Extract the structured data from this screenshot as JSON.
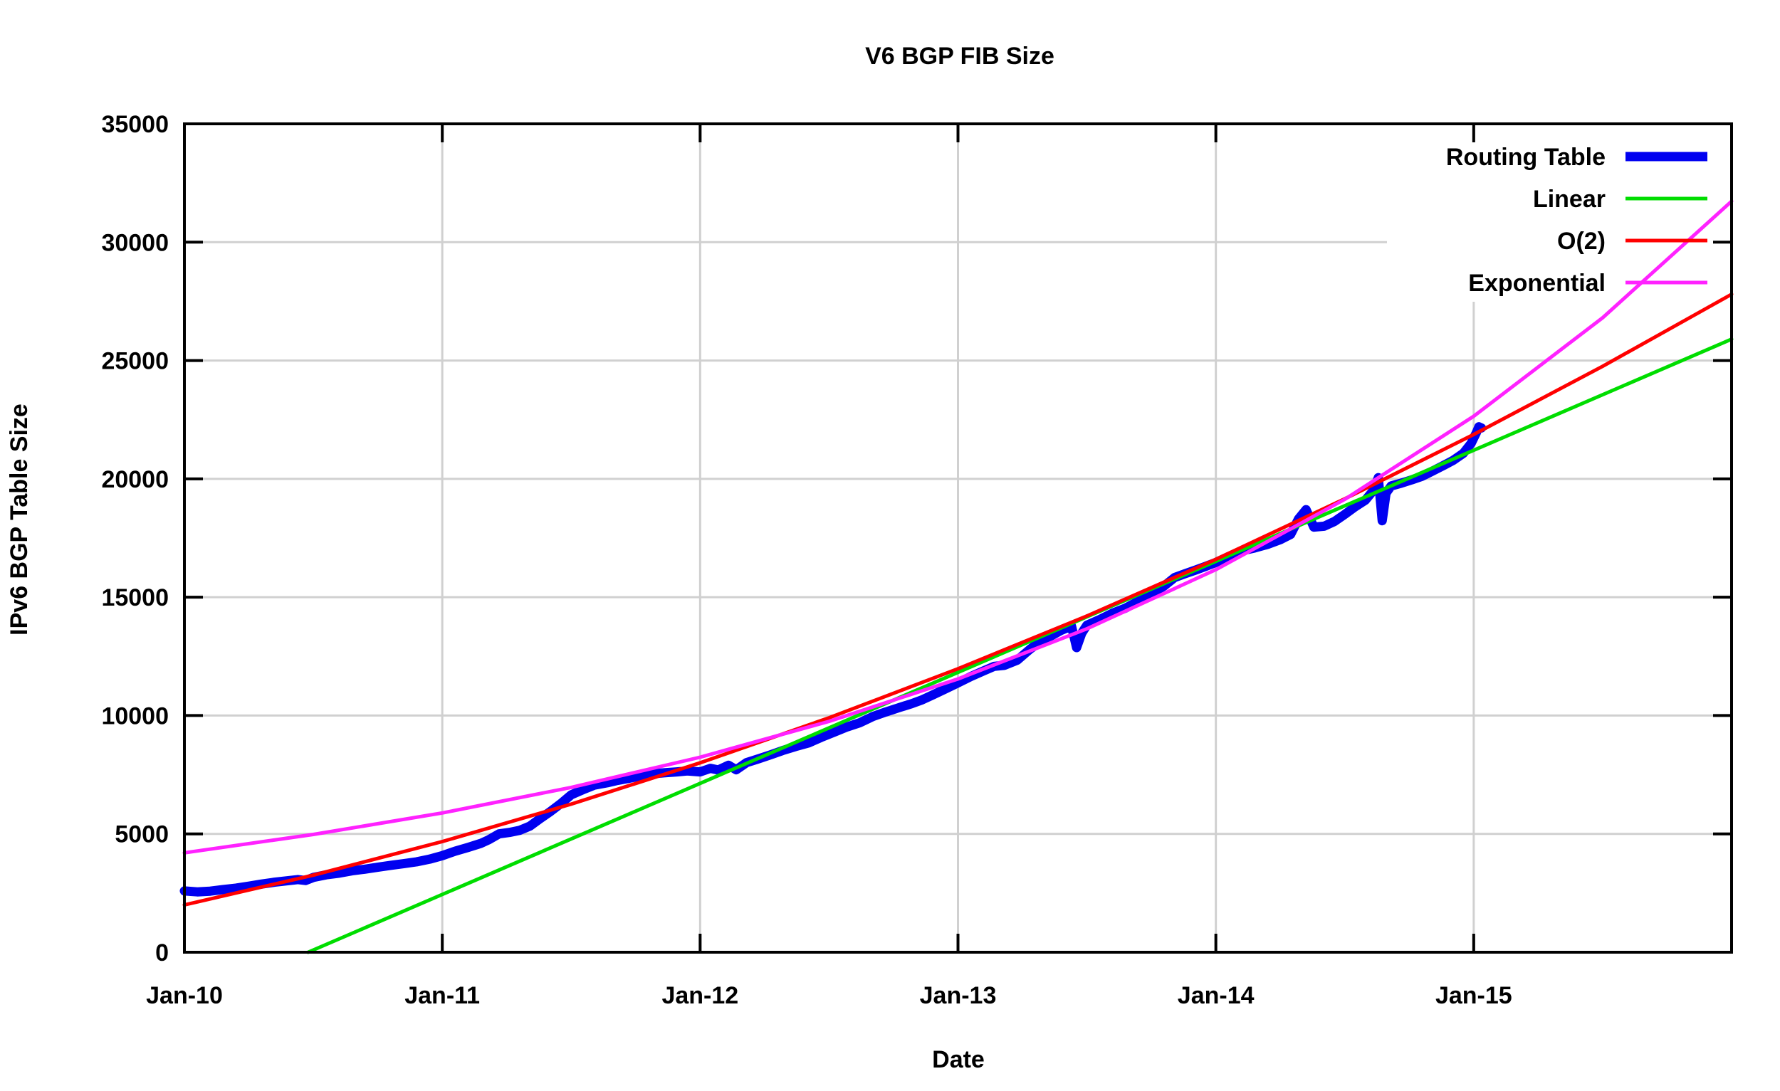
{
  "title": "V6 BGP FIB Size",
  "x_axis": {
    "label": "Date"
  },
  "y_axis": {
    "label": "IPv6 BGP Table Size"
  },
  "colors": {
    "background": "#ffffff",
    "grid": "#d0d0d0",
    "border": "#000000",
    "routing_table": "#0000f0",
    "linear": "#00dd00",
    "o2": "#ff0000",
    "exponential": "#ff22ff"
  },
  "legend": {
    "entries": [
      {
        "label": "Routing Table",
        "color": "#0000f0",
        "line_width": 13
      },
      {
        "label": "Linear",
        "color": "#00dd00",
        "line_width": 5
      },
      {
        "label": "O(2)",
        "color": "#ff0000",
        "line_width": 5
      },
      {
        "label": "Exponential",
        "color": "#ff22ff",
        "line_width": 5
      }
    ]
  },
  "chart_data": {
    "type": "line",
    "title": "V6 BGP FIB Size",
    "xlabel": "Date",
    "ylabel": "IPv6 BGP Table Size",
    "grid": true,
    "legend_position": "top-right-inside",
    "x_unit": "years since Jan-2010",
    "x_range": [
      0,
      6
    ],
    "y_range": [
      0,
      35000
    ],
    "x_ticks": [
      {
        "t": 0,
        "label": "Jan-10"
      },
      {
        "t": 1,
        "label": "Jan-11"
      },
      {
        "t": 2,
        "label": "Jan-12"
      },
      {
        "t": 3,
        "label": "Jan-13"
      },
      {
        "t": 4,
        "label": "Jan-14"
      },
      {
        "t": 5,
        "label": "Jan-15"
      }
    ],
    "y_ticks": [
      0,
      5000,
      10000,
      15000,
      20000,
      25000,
      30000,
      35000
    ],
    "series": [
      {
        "name": "Routing Table",
        "color": "#0000f0",
        "width": 13,
        "points": [
          [
            0,
            2590
          ],
          [
            0.05,
            2550
          ],
          [
            0.1,
            2580
          ],
          [
            0.15,
            2650
          ],
          [
            0.2,
            2710
          ],
          [
            0.25,
            2790
          ],
          [
            0.3,
            2880
          ],
          [
            0.35,
            2960
          ],
          [
            0.4,
            3020
          ],
          [
            0.44,
            3070
          ],
          [
            0.47,
            3030
          ],
          [
            0.5,
            3160
          ],
          [
            0.55,
            3270
          ],
          [
            0.6,
            3340
          ],
          [
            0.65,
            3440
          ],
          [
            0.7,
            3510
          ],
          [
            0.75,
            3590
          ],
          [
            0.8,
            3670
          ],
          [
            0.85,
            3740
          ],
          [
            0.9,
            3820
          ],
          [
            0.95,
            3930
          ],
          [
            1,
            4080
          ],
          [
            1.05,
            4270
          ],
          [
            1.1,
            4430
          ],
          [
            1.15,
            4600
          ],
          [
            1.18,
            4750
          ],
          [
            1.22,
            5000
          ],
          [
            1.26,
            5060
          ],
          [
            1.3,
            5150
          ],
          [
            1.34,
            5330
          ],
          [
            1.38,
            5650
          ],
          [
            1.42,
            5950
          ],
          [
            1.46,
            6280
          ],
          [
            1.5,
            6650
          ],
          [
            1.55,
            6890
          ],
          [
            1.59,
            7060
          ],
          [
            1.64,
            7160
          ],
          [
            1.68,
            7260
          ],
          [
            1.73,
            7360
          ],
          [
            1.77,
            7450
          ],
          [
            1.82,
            7540
          ],
          [
            1.86,
            7580
          ],
          [
            1.91,
            7620
          ],
          [
            1.95,
            7660
          ],
          [
            2,
            7620
          ],
          [
            2.04,
            7770
          ],
          [
            2.07,
            7700
          ],
          [
            2.11,
            7900
          ],
          [
            2.14,
            7710
          ],
          [
            2.18,
            8010
          ],
          [
            2.22,
            8150
          ],
          [
            2.27,
            8330
          ],
          [
            2.32,
            8520
          ],
          [
            2.37,
            8690
          ],
          [
            2.42,
            8840
          ],
          [
            2.47,
            9080
          ],
          [
            2.52,
            9300
          ],
          [
            2.57,
            9520
          ],
          [
            2.62,
            9700
          ],
          [
            2.67,
            9960
          ],
          [
            2.72,
            10150
          ],
          [
            2.77,
            10330
          ],
          [
            2.82,
            10500
          ],
          [
            2.86,
            10660
          ],
          [
            2.9,
            10860
          ],
          [
            2.95,
            11120
          ],
          [
            3,
            11380
          ],
          [
            3.05,
            11650
          ],
          [
            3.1,
            11890
          ],
          [
            3.14,
            12080
          ],
          [
            3.18,
            12120
          ],
          [
            3.23,
            12340
          ],
          [
            3.28,
            12810
          ],
          [
            3.32,
            13130
          ],
          [
            3.36,
            13360
          ],
          [
            3.4,
            13600
          ],
          [
            3.44,
            13780
          ],
          [
            3.46,
            12870
          ],
          [
            3.48,
            13480
          ],
          [
            3.5,
            13820
          ],
          [
            3.55,
            14060
          ],
          [
            3.6,
            14330
          ],
          [
            3.65,
            14540
          ],
          [
            3.7,
            14830
          ],
          [
            3.75,
            15140
          ],
          [
            3.8,
            15480
          ],
          [
            3.84,
            15830
          ],
          [
            3.88,
            15990
          ],
          [
            3.92,
            16140
          ],
          [
            3.96,
            16300
          ],
          [
            4,
            16470
          ],
          [
            4.05,
            16720
          ],
          [
            4.1,
            16960
          ],
          [
            4.15,
            17080
          ],
          [
            4.2,
            17230
          ],
          [
            4.25,
            17430
          ],
          [
            4.29,
            17650
          ],
          [
            4.32,
            18300
          ],
          [
            4.35,
            18700
          ],
          [
            4.38,
            17960
          ],
          [
            4.42,
            18000
          ],
          [
            4.46,
            18200
          ],
          [
            4.5,
            18500
          ],
          [
            4.54,
            18820
          ],
          [
            4.58,
            19100
          ],
          [
            4.61,
            19500
          ],
          [
            4.63,
            20050
          ],
          [
            4.645,
            18230
          ],
          [
            4.66,
            19400
          ],
          [
            4.68,
            19700
          ],
          [
            4.72,
            19820
          ],
          [
            4.76,
            19960
          ],
          [
            4.8,
            20110
          ],
          [
            4.84,
            20330
          ],
          [
            4.88,
            20550
          ],
          [
            4.92,
            20780
          ],
          [
            4.96,
            21080
          ],
          [
            4.99,
            21500
          ],
          [
            5.01,
            21950
          ],
          [
            5.02,
            22200
          ],
          [
            5.03,
            22150
          ]
        ]
      },
      {
        "name": "Linear",
        "color": "#00dd00",
        "width": 5,
        "points": [
          [
            0.48,
            0
          ],
          [
            6,
            25900
          ]
        ]
      },
      {
        "name": "O(2)",
        "color": "#ff0000",
        "width": 5,
        "points": [
          [
            0,
            2000
          ],
          [
            0.5,
            3256
          ],
          [
            1,
            4675
          ],
          [
            1.5,
            6256
          ],
          [
            2,
            8000
          ],
          [
            2.5,
            9906
          ],
          [
            3,
            11975
          ],
          [
            3.5,
            14206
          ],
          [
            4,
            16600
          ],
          [
            4.5,
            19156
          ],
          [
            5,
            21875
          ],
          [
            5.5,
            24756
          ],
          [
            6,
            27800
          ]
        ]
      },
      {
        "name": "Exponential",
        "color": "#ff22ff",
        "width": 5,
        "points": [
          [
            0,
            4200
          ],
          [
            0.5,
            4975
          ],
          [
            1,
            5885
          ],
          [
            1.5,
            6965
          ],
          [
            2,
            8240
          ],
          [
            2.5,
            9755
          ],
          [
            3,
            11545
          ],
          [
            3.5,
            13665
          ],
          [
            4,
            16165
          ],
          [
            4.5,
            19135
          ],
          [
            5,
            22645
          ],
          [
            5.5,
            26805
          ],
          [
            6,
            31730
          ]
        ]
      }
    ]
  }
}
